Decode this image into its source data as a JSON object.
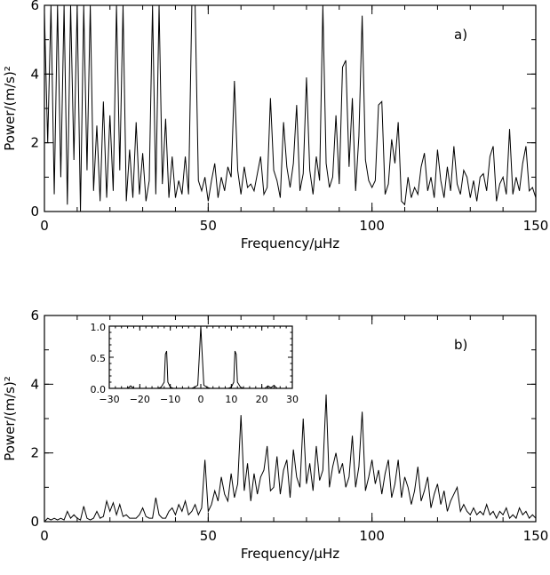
{
  "chart_data": [
    {
      "type": "line",
      "panel_label": "a)",
      "xlabel": "Frequency/μHz",
      "ylabel": "Power/(m/s)²",
      "xlim": [
        0,
        150
      ],
      "ylim": [
        0,
        6
      ],
      "xticks": [
        "0",
        "50",
        "100",
        "150"
      ],
      "yticks": [
        "0",
        "2",
        "4",
        "6"
      ],
      "grid": false,
      "series": [
        {
          "x": [
            0,
            1,
            2,
            3,
            4,
            5,
            6,
            7,
            8,
            9,
            10,
            11,
            12,
            13,
            14,
            15,
            16,
            17,
            18,
            19,
            20,
            21,
            22,
            23,
            24,
            25,
            26,
            27,
            28,
            29,
            30,
            31,
            32,
            33,
            34,
            35,
            36,
            37,
            38,
            39,
            40,
            41,
            42,
            43,
            44,
            45,
            46,
            47,
            48,
            49,
            50,
            51,
            52,
            53,
            54,
            55,
            56,
            57,
            58,
            59,
            60,
            61,
            62,
            63,
            64,
            65,
            66,
            67,
            68,
            69,
            70,
            71,
            72,
            73,
            74,
            75,
            76,
            77,
            78,
            79,
            80,
            81,
            82,
            83,
            84,
            85,
            86,
            87,
            88,
            89,
            90,
            91,
            92,
            93,
            94,
            95,
            96,
            97,
            98,
            99,
            100,
            101,
            102,
            103,
            104,
            105,
            106,
            107,
            108,
            109,
            110,
            111,
            112,
            113,
            114,
            115,
            116,
            117,
            118,
            119,
            120,
            121,
            122,
            123,
            124,
            125,
            126,
            127,
            128,
            129,
            130,
            131,
            132,
            133,
            134,
            135,
            136,
            137,
            138,
            139,
            140,
            141,
            142,
            143,
            144,
            145,
            146,
            147,
            148,
            149,
            150
          ],
          "y": [
            5.8,
            2.0,
            6.0,
            0.5,
            6.0,
            1.0,
            6.0,
            0.2,
            6.0,
            1.5,
            6.0,
            0.0,
            6.0,
            1.2,
            6.0,
            0.6,
            2.5,
            0.3,
            3.2,
            0.4,
            2.8,
            0.6,
            6.0,
            1.2,
            6.0,
            0.3,
            1.8,
            0.4,
            2.6,
            0.5,
            1.7,
            0.3,
            0.9,
            6.0,
            0.5,
            6.0,
            0.8,
            2.7,
            0.4,
            1.6,
            0.4,
            0.9,
            0.5,
            1.6,
            0.5,
            6.0,
            6.0,
            0.9,
            0.6,
            1.0,
            0.3,
            0.9,
            1.4,
            0.4,
            1.0,
            0.6,
            1.3,
            1.0,
            3.8,
            1.2,
            0.5,
            1.3,
            0.7,
            0.8,
            0.6,
            1.1,
            1.6,
            0.5,
            0.7,
            3.3,
            1.2,
            0.9,
            0.4,
            2.6,
            1.3,
            0.7,
            1.4,
            3.1,
            0.6,
            1.1,
            3.9,
            1.2,
            0.5,
            1.6,
            0.9,
            6.0,
            1.4,
            0.7,
            1.0,
            2.8,
            0.8,
            4.2,
            4.4,
            1.3,
            3.3,
            0.6,
            2.2,
            5.7,
            1.5,
            0.9,
            0.7,
            0.9,
            3.1,
            3.2,
            0.5,
            0.8,
            2.1,
            1.4,
            2.6,
            0.3,
            0.2,
            1.0,
            0.4,
            0.7,
            0.5,
            1.3,
            1.7,
            0.6,
            1.0,
            0.4,
            1.8,
            0.9,
            0.4,
            1.3,
            0.6,
            1.9,
            0.8,
            0.5,
            1.2,
            1.0,
            0.4,
            0.9,
            0.3,
            1.0,
            1.1,
            0.6,
            1.6,
            1.9,
            0.3,
            0.8,
            1.0,
            0.5,
            2.4,
            0.5,
            1.0,
            0.6,
            1.4,
            1.9,
            0.6,
            0.7,
            0.4
          ]
        }
      ]
    },
    {
      "type": "line",
      "panel_label": "b)",
      "xlabel": "Frequency/μHz",
      "ylabel": "Power/(m/s)²",
      "xlim": [
        0,
        150
      ],
      "ylim": [
        0,
        6
      ],
      "xticks": [
        "0",
        "50",
        "100",
        "150"
      ],
      "yticks": [
        "0",
        "2",
        "4",
        "6"
      ],
      "grid": false,
      "series": [
        {
          "x": [
            0,
            1,
            2,
            3,
            4,
            5,
            6,
            7,
            8,
            9,
            10,
            11,
            12,
            13,
            14,
            15,
            16,
            17,
            18,
            19,
            20,
            21,
            22,
            23,
            24,
            25,
            26,
            27,
            28,
            29,
            30,
            31,
            32,
            33,
            34,
            35,
            36,
            37,
            38,
            39,
            40,
            41,
            42,
            43,
            44,
            45,
            46,
            47,
            48,
            49,
            50,
            51,
            52,
            53,
            54,
            55,
            56,
            57,
            58,
            59,
            60,
            61,
            62,
            63,
            64,
            65,
            66,
            67,
            68,
            69,
            70,
            71,
            72,
            73,
            74,
            75,
            76,
            77,
            78,
            79,
            80,
            81,
            82,
            83,
            84,
            85,
            86,
            87,
            88,
            89,
            90,
            91,
            92,
            93,
            94,
            95,
            96,
            97,
            98,
            99,
            100,
            101,
            102,
            103,
            104,
            105,
            106,
            107,
            108,
            109,
            110,
            111,
            112,
            113,
            114,
            115,
            116,
            117,
            118,
            119,
            120,
            121,
            122,
            123,
            124,
            125,
            126,
            127,
            128,
            129,
            130,
            131,
            132,
            133,
            134,
            135,
            136,
            137,
            138,
            139,
            140,
            141,
            142,
            143,
            144,
            145,
            146,
            147,
            148,
            149,
            150
          ],
          "y": [
            0.0,
            0.1,
            0.05,
            0.1,
            0.05,
            0.1,
            0.05,
            0.3,
            0.1,
            0.2,
            0.1,
            0.05,
            0.45,
            0.1,
            0.05,
            0.1,
            0.3,
            0.1,
            0.15,
            0.6,
            0.3,
            0.55,
            0.2,
            0.5,
            0.15,
            0.2,
            0.1,
            0.1,
            0.1,
            0.2,
            0.4,
            0.15,
            0.1,
            0.1,
            0.7,
            0.2,
            0.1,
            0.1,
            0.3,
            0.4,
            0.2,
            0.5,
            0.3,
            0.6,
            0.2,
            0.3,
            0.5,
            0.2,
            0.4,
            1.8,
            0.3,
            0.5,
            0.9,
            0.6,
            1.3,
            0.8,
            0.6,
            1.4,
            0.7,
            1.1,
            3.1,
            0.9,
            1.7,
            0.6,
            1.4,
            0.8,
            1.3,
            1.5,
            2.2,
            0.9,
            1.0,
            1.9,
            0.8,
            1.5,
            1.8,
            0.7,
            2.1,
            1.3,
            1.0,
            3.0,
            1.1,
            1.7,
            0.9,
            2.2,
            1.2,
            1.5,
            3.7,
            1.0,
            1.6,
            2.0,
            1.4,
            1.7,
            1.0,
            1.3,
            2.5,
            1.0,
            1.6,
            3.2,
            0.9,
            1.3,
            1.8,
            1.1,
            1.5,
            0.8,
            1.4,
            1.8,
            0.7,
            1.1,
            1.8,
            0.7,
            1.3,
            1.0,
            0.5,
            0.9,
            1.6,
            0.6,
            0.9,
            1.3,
            0.4,
            0.8,
            1.1,
            0.5,
            0.9,
            0.3,
            0.6,
            0.8,
            1.0,
            0.3,
            0.5,
            0.3,
            0.2,
            0.4,
            0.2,
            0.3,
            0.2,
            0.5,
            0.2,
            0.3,
            0.1,
            0.3,
            0.2,
            0.4,
            0.1,
            0.2,
            0.1,
            0.4,
            0.2,
            0.3,
            0.1,
            0.2,
            0.1
          ]
        }
      ],
      "inset": {
        "type": "line",
        "xlim": [
          -30,
          30
        ],
        "ylim": [
          0,
          1
        ],
        "xticks": [
          "−30",
          "−20",
          "−10",
          "0",
          "10",
          "20",
          "30"
        ],
        "yticks": [
          "0.0",
          "0.5",
          "1.0"
        ],
        "x": [
          -30,
          -29,
          -28,
          -27,
          -26,
          -25,
          -24,
          -23,
          -22,
          -21,
          -20,
          -19,
          -18,
          -17,
          -16,
          -15,
          -14,
          -13,
          -12,
          -11.6,
          -11.2,
          -10.8,
          -10,
          -9,
          -8,
          -7,
          -6,
          -5,
          -4,
          -3,
          -2,
          -1,
          -0.4,
          0,
          0.4,
          1,
          2,
          3,
          4,
          5,
          6,
          7,
          8,
          9,
          10,
          10.8,
          11.2,
          11.6,
          12,
          13,
          14,
          15,
          16,
          17,
          18,
          19,
          20,
          21,
          22,
          23,
          24,
          25,
          26,
          27,
          28,
          29,
          30
        ],
        "y": [
          0,
          0,
          0,
          0,
          0,
          0,
          0,
          0.04,
          0,
          0,
          0,
          0,
          0,
          0,
          0,
          0,
          0,
          0.02,
          0.1,
          0.55,
          0.6,
          0.1,
          0.02,
          0,
          0,
          0,
          0,
          0,
          0,
          0,
          0.02,
          0.05,
          0.6,
          1.0,
          0.6,
          0.05,
          0.02,
          0,
          0,
          0,
          0,
          0,
          0,
          0,
          0.02,
          0.1,
          0.6,
          0.55,
          0.1,
          0.02,
          0,
          0,
          0,
          0,
          0,
          0,
          0,
          0,
          0.04,
          0.01,
          0.05,
          0,
          0,
          0,
          0,
          0,
          0
        ]
      }
    }
  ]
}
